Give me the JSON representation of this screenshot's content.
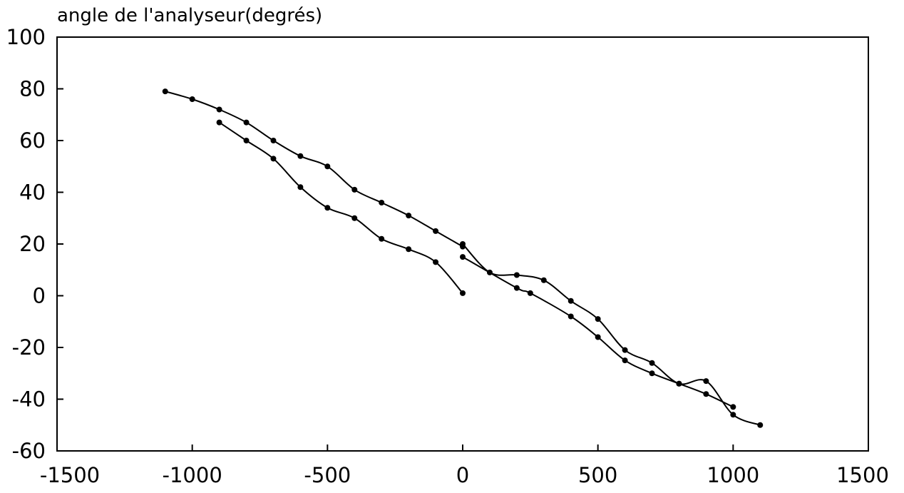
{
  "chart_data": {
    "type": "scatter",
    "title": "",
    "xlabel": "",
    "ylabel": "angle de l'analyseur(degrés)",
    "xlim": [
      -1500,
      1500
    ],
    "ylim": [
      -60,
      100
    ],
    "x_ticks": [
      -1500,
      -1000,
      -500,
      0,
      500,
      1000,
      1500
    ],
    "y_ticks": [
      100,
      80,
      60,
      40,
      20,
      0,
      -20,
      -40,
      -60
    ],
    "grid": false,
    "legend": "none",
    "series": [
      {
        "points": [
          [
            -1100,
            79
          ],
          [
            -1000,
            76
          ],
          [
            -900,
            72
          ],
          [
            -800,
            67
          ],
          [
            -700,
            60
          ],
          [
            -600,
            54
          ],
          [
            -500,
            50
          ],
          [
            -400,
            41
          ],
          [
            -300,
            36
          ],
          [
            -200,
            31
          ],
          [
            -100,
            25
          ],
          [
            0,
            19
          ]
        ]
      },
      {
        "points": [
          [
            -900,
            67
          ],
          [
            -800,
            60
          ],
          [
            -700,
            53
          ],
          [
            -600,
            42
          ],
          [
            -500,
            34
          ],
          [
            -400,
            30
          ],
          [
            -300,
            22
          ],
          [
            -200,
            18
          ],
          [
            -100,
            13
          ],
          [
            0,
            1
          ]
        ]
      },
      {
        "points": [
          [
            0,
            20
          ],
          [
            100,
            9
          ],
          [
            200,
            8
          ],
          [
            300,
            6
          ],
          [
            400,
            -2
          ],
          [
            500,
            -9
          ],
          [
            600,
            -21
          ],
          [
            700,
            -26
          ],
          [
            800,
            -34
          ],
          [
            900,
            -33
          ],
          [
            1000,
            -46
          ],
          [
            1100,
            -50
          ]
        ]
      },
      {
        "points": [
          [
            0,
            15
          ],
          [
            200,
            3
          ],
          [
            250,
            1
          ],
          [
            400,
            -8
          ],
          [
            500,
            -16
          ],
          [
            600,
            -25
          ],
          [
            700,
            -30
          ],
          [
            800,
            -34
          ],
          [
            900,
            -38
          ],
          [
            1000,
            -43
          ]
        ]
      }
    ]
  }
}
